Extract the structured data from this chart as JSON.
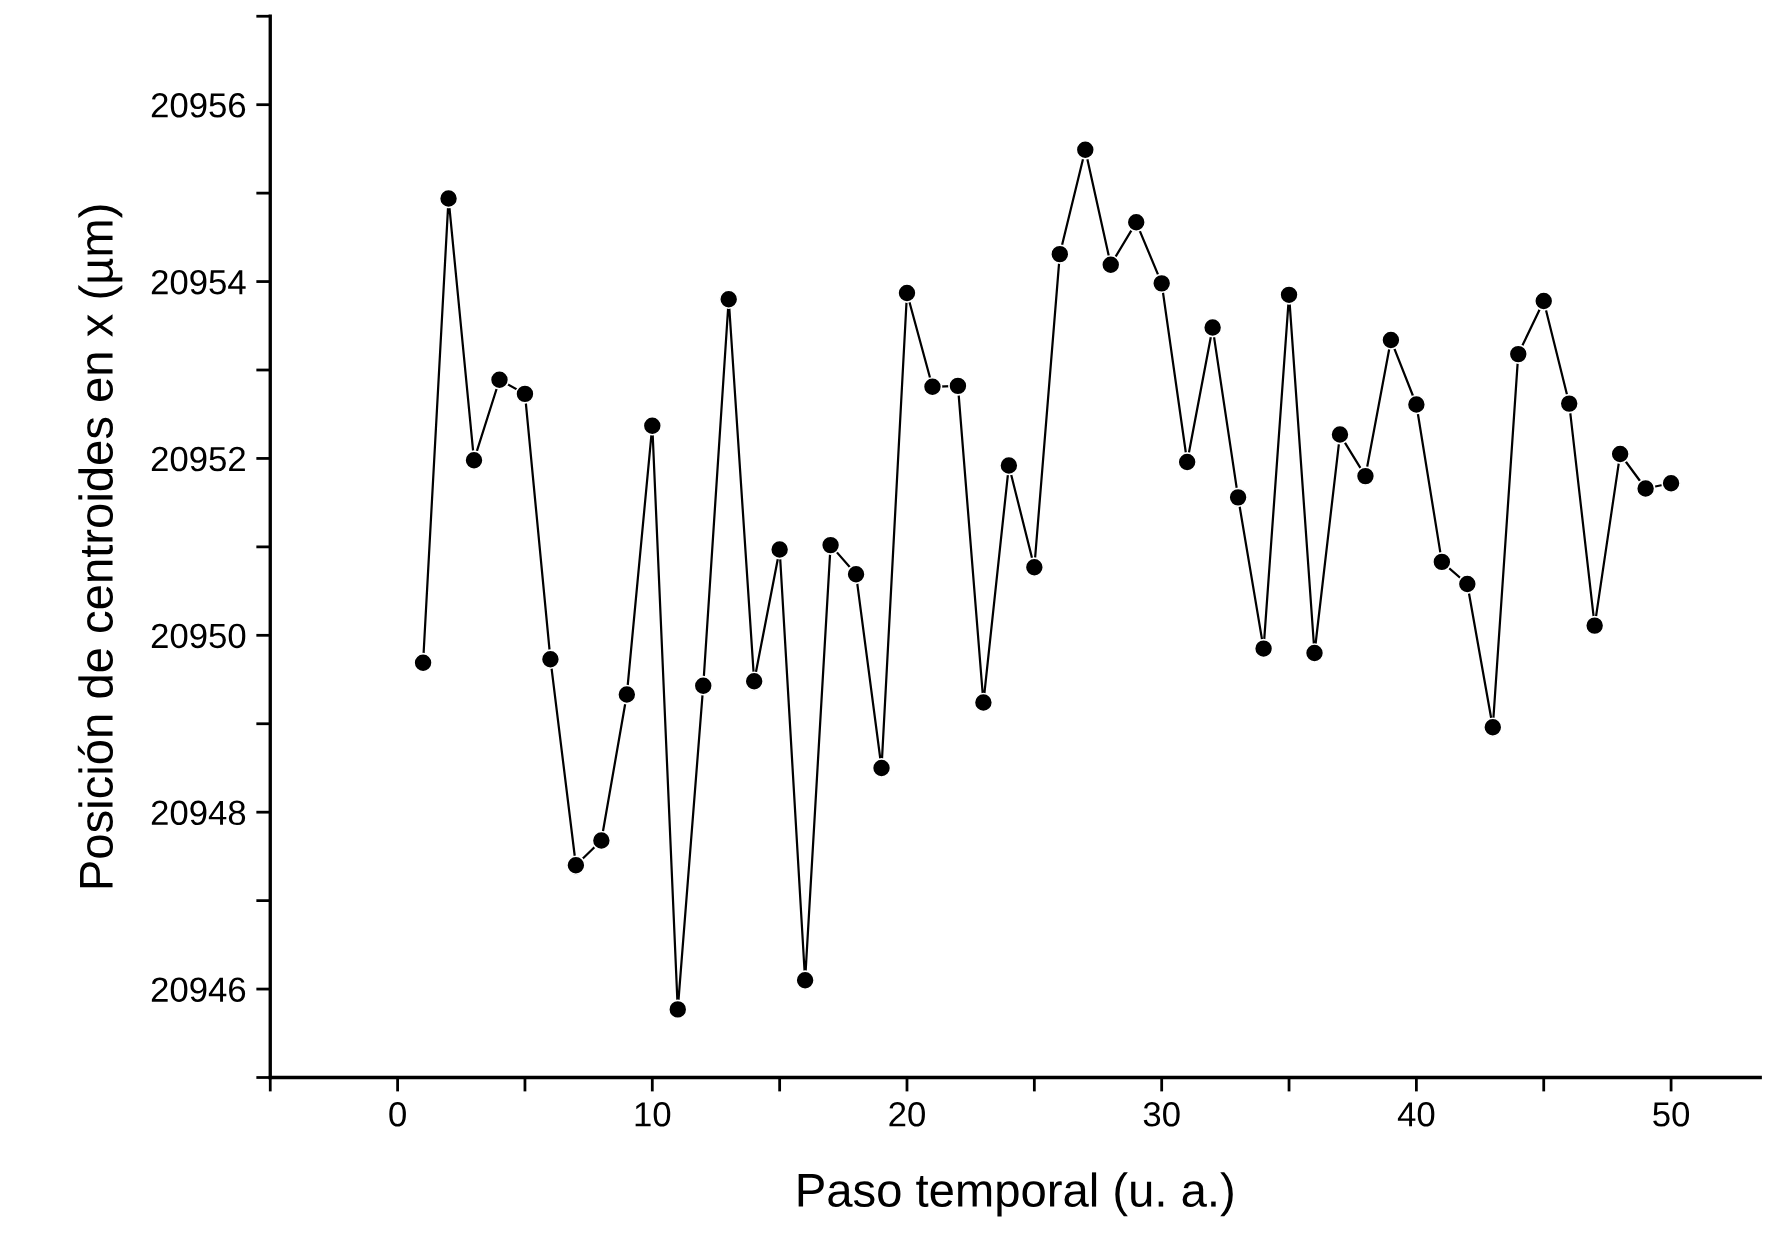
{
  "chart_data": {
    "type": "line",
    "xlabel": "Paso temporal (u. a.)",
    "ylabel": "Posición de centroides en x (µm)",
    "x": [
      1,
      2,
      3,
      4,
      5,
      6,
      7,
      8,
      9,
      10,
      11,
      12,
      13,
      14,
      15,
      16,
      17,
      18,
      19,
      20,
      21,
      22,
      23,
      24,
      25,
      26,
      27,
      28,
      29,
      30,
      31,
      32,
      33,
      34,
      35,
      36,
      37,
      38,
      39,
      40,
      41,
      42,
      43,
      44,
      45,
      46,
      47,
      48,
      49,
      50
    ],
    "series": [
      {
        "color": "#000000",
        "values": [
          20949.69,
          20954.94,
          20951.98,
          20952.89,
          20952.73,
          20949.73,
          20947.4,
          20947.68,
          20949.33,
          20952.37,
          20945.77,
          20949.43,
          20953.8,
          20949.48,
          20950.97,
          20946.1,
          20951.02,
          20950.69,
          20948.5,
          20953.87,
          20952.81,
          20952.82,
          20949.24,
          20951.92,
          20950.77,
          20954.31,
          20955.49,
          20954.19,
          20954.67,
          20953.98,
          20951.96,
          20953.48,
          20951.56,
          20949.85,
          20953.85,
          20949.8,
          20952.27,
          20951.8,
          20953.34,
          20952.61,
          20950.83,
          20950.58,
          20948.96,
          20953.18,
          20953.78,
          20952.62,
          20950.11,
          20952.05,
          20951.66,
          20951.72
        ]
      }
    ],
    "xlim": [
      -5,
      53.5
    ],
    "xticks": [
      {
        "value": -5,
        "label": null
      },
      0,
      {
        "value": 5,
        "label": null
      },
      10,
      {
        "value": 15,
        "label": null
      },
      20,
      {
        "value": 25,
        "label": null
      },
      30,
      {
        "value": 35,
        "label": null
      },
      40,
      {
        "value": 45,
        "label": null
      },
      50
    ],
    "ylim": [
      20945,
      20957
    ],
    "yticks": [
      {
        "value": 20945,
        "label": null
      },
      20946,
      {
        "value": 20947,
        "label": null
      },
      20948,
      {
        "value": 20949,
        "label": null
      },
      20950,
      {
        "value": 20951,
        "label": null
      },
      20952,
      {
        "value": 20953,
        "label": null
      },
      20954,
      {
        "value": 20955,
        "label": null
      },
      20956,
      {
        "value": 20957,
        "label": null
      }
    ],
    "marker": "circle",
    "line_style": "solid",
    "grid": false,
    "legend": false
  }
}
